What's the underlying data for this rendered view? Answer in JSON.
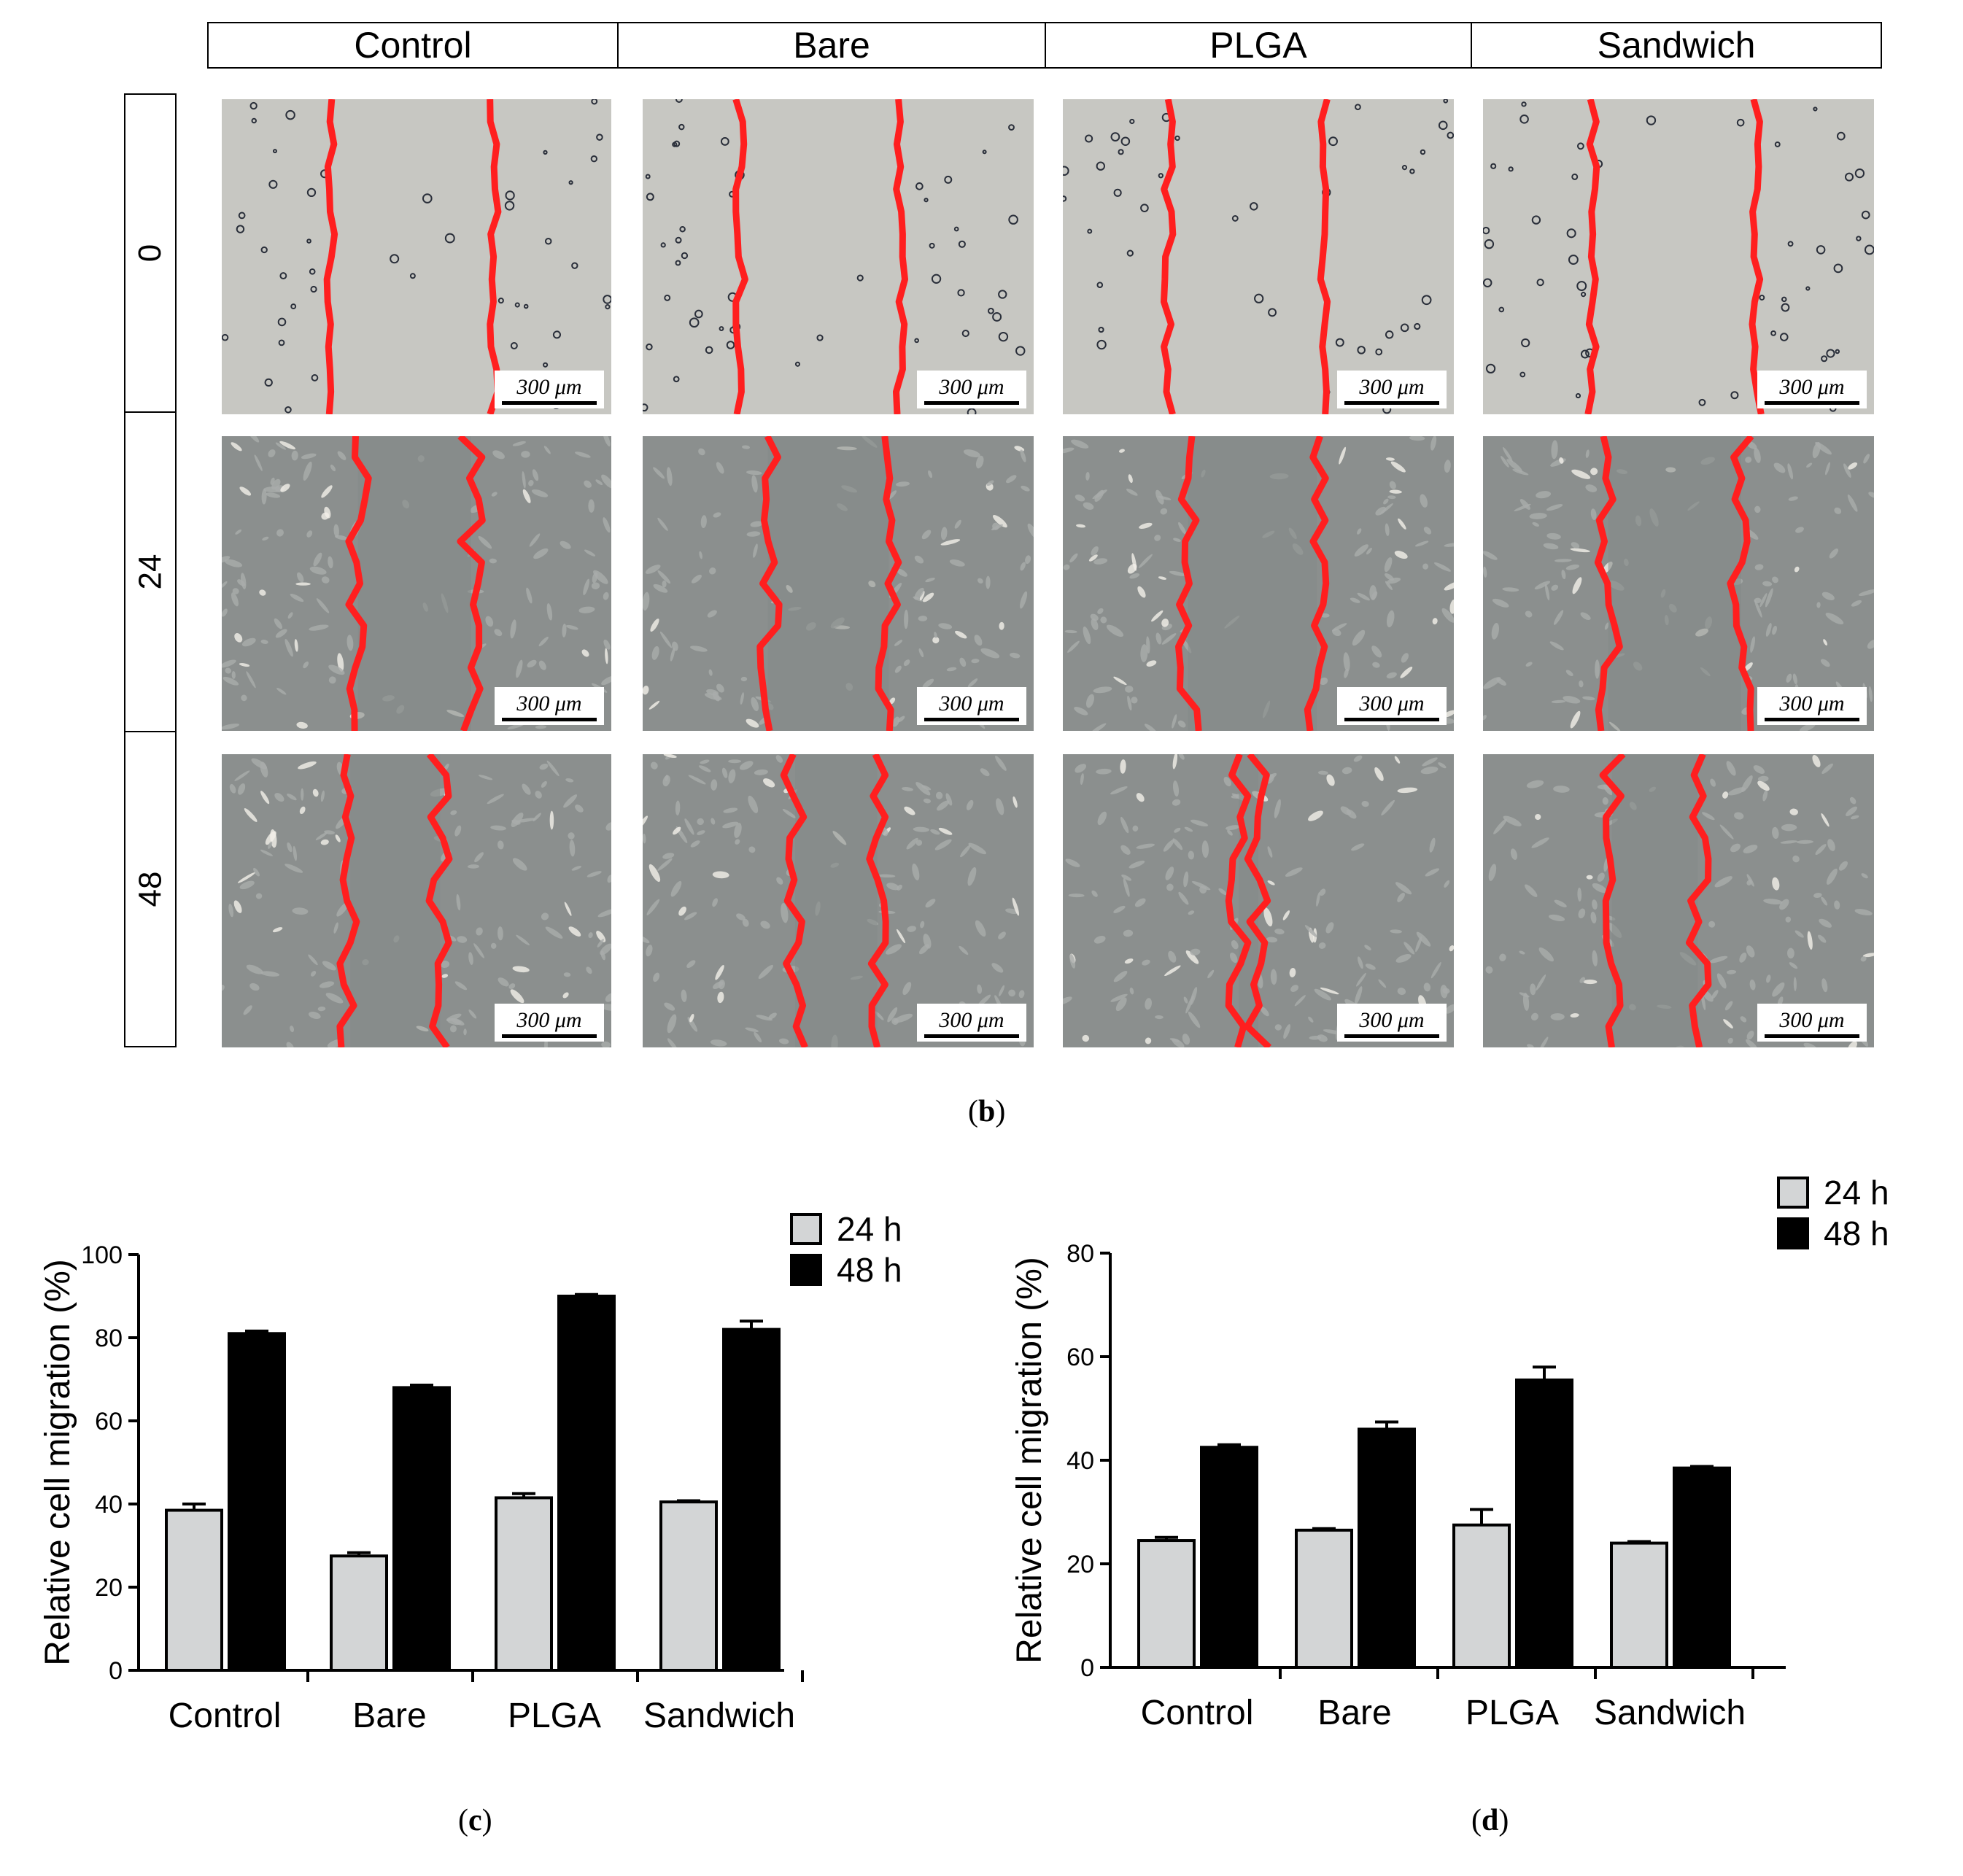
{
  "panel_b": {
    "columns": [
      "Control",
      "Bare",
      "PLGA",
      "Sandwich"
    ],
    "rows": [
      "0",
      "24",
      "48"
    ],
    "scale_bar": "300 μm",
    "label_prefix": "(",
    "label_letter": "b",
    "label_suffix": ")",
    "colors": {
      "wound_line": "#ff1f1f",
      "image_0h": "#c7c7c2",
      "image_24_48h": "#8b8f8e"
    }
  },
  "panel_c": {
    "label_letter": "c"
  },
  "panel_d": {
    "label_letter": "d"
  },
  "chart_data": [
    {
      "type": "bar",
      "panel": "c",
      "ylabel": "Relative cell migration (%)",
      "categories": [
        "Control",
        "Bare",
        "PLGA",
        "Sandwich"
      ],
      "ylim": [
        0,
        100
      ],
      "yticks": [
        0,
        20,
        40,
        60,
        80,
        100
      ],
      "legend_position": "top-right",
      "series": [
        {
          "name": "24 h",
          "color": "#d3d5d6",
          "values": [
            38.5,
            27.5,
            41.5,
            40.5
          ],
          "errors": [
            1.5,
            0.8,
            1.0,
            0.3
          ]
        },
        {
          "name": "48 h",
          "color": "#000000",
          "values": [
            81,
            68,
            90,
            82
          ],
          "errors": [
            0.6,
            0.6,
            0.4,
            2.0
          ]
        }
      ]
    },
    {
      "type": "bar",
      "panel": "d",
      "ylabel": "Relative cell migration (%)",
      "categories": [
        "Control",
        "Bare",
        "PLGA",
        "Sandwich"
      ],
      "ylim": [
        0,
        80
      ],
      "yticks": [
        0,
        20,
        40,
        60,
        80
      ],
      "legend_position": "top-right",
      "series": [
        {
          "name": "24 h",
          "color": "#d3d5d6",
          "values": [
            24.5,
            26.5,
            27.5,
            24
          ],
          "errors": [
            0.6,
            0.3,
            3.0,
            0.3
          ]
        },
        {
          "name": "48 h",
          "color": "#000000",
          "values": [
            42.5,
            46,
            55.5,
            38.5
          ],
          "errors": [
            0.5,
            1.4,
            2.5,
            0.3
          ]
        }
      ]
    }
  ]
}
